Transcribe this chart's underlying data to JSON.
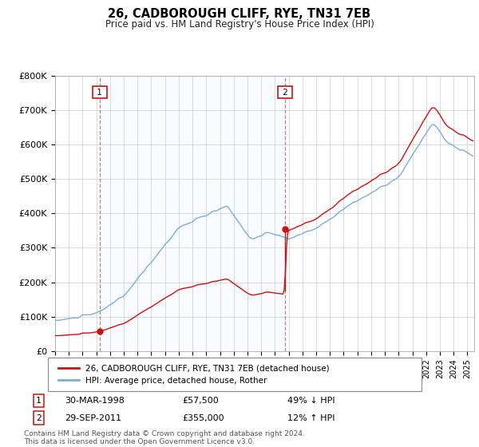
{
  "title": "26, CADBOROUGH CLIFF, RYE, TN31 7EB",
  "subtitle": "Price paid vs. HM Land Registry's House Price Index (HPI)",
  "ylim": [
    0,
    800000
  ],
  "yticks": [
    0,
    100000,
    200000,
    300000,
    400000,
    500000,
    600000,
    700000,
    800000
  ],
  "ytick_labels": [
    "£0",
    "£100K",
    "£200K",
    "£300K",
    "£400K",
    "£500K",
    "£600K",
    "£700K",
    "£800K"
  ],
  "hpi_color": "#7bafd4",
  "price_color": "#cc1111",
  "vline_color": "#dd6666",
  "shade_color": "#ddeeff",
  "background_color": "#ffffff",
  "grid_color": "#cccccc",
  "t1_x": 1998.25,
  "t1_y": 57500,
  "t2_x": 2011.75,
  "t2_y": 355000,
  "legend_line1": "26, CADBOROUGH CLIFF, RYE, TN31 7EB (detached house)",
  "legend_line2": "HPI: Average price, detached house, Rother",
  "footnote1": "Contains HM Land Registry data © Crown copyright and database right 2024.",
  "footnote2": "This data is licensed under the Open Government Licence v3.0.",
  "xlim_start": 1995.0,
  "xlim_end": 2025.5
}
